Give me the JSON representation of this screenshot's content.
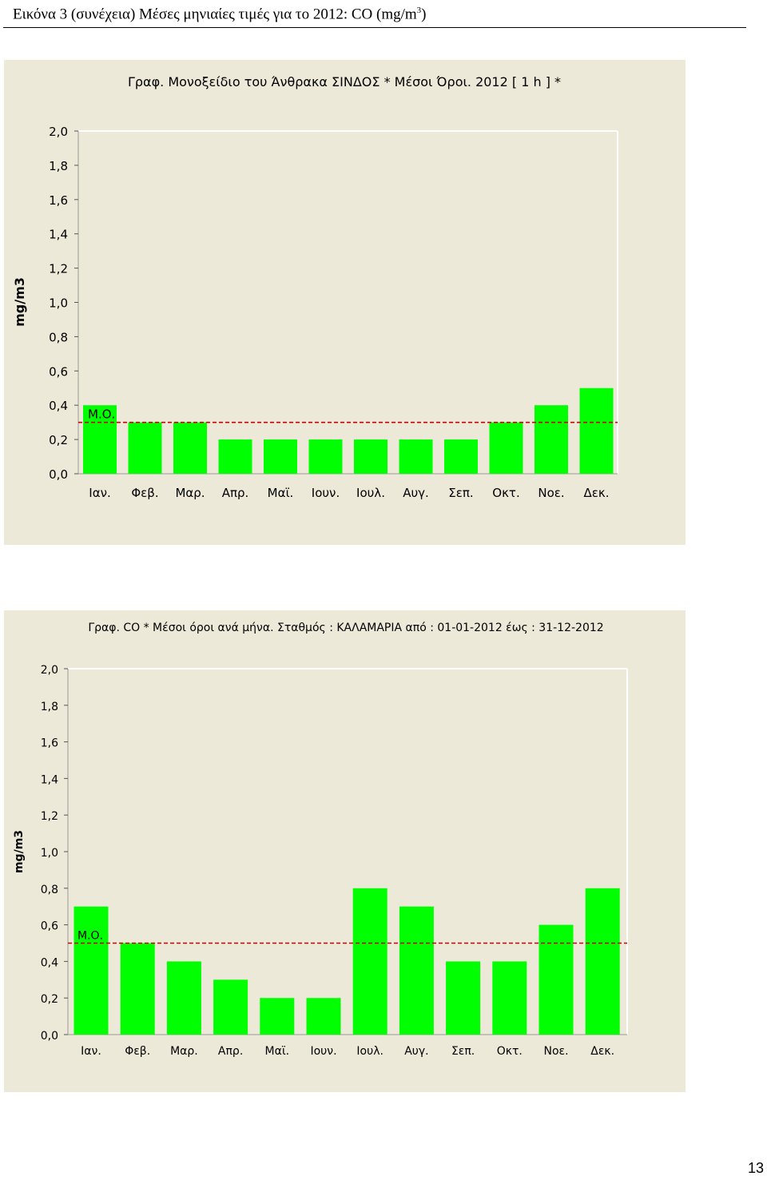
{
  "page": {
    "header_prefix": "Εικόνα 3 (συνέχεια) Μέσες μηνιαίες τιμές για το 2012: CO (mg/m",
    "header_sup": "3",
    "header_suffix": ")",
    "page_number": "13"
  },
  "chart_data": [
    {
      "type": "bar",
      "title": "Γραφ. Μονοξείδιο του Άνθρακα ΣΙΝΔΟΣ * Μέσοι Όροι. 2012 [ 1 h ] *",
      "ylabel": "mg/m3",
      "xlabel": "",
      "categories": [
        "Ιαν.",
        "Φεβ.",
        "Μαρ.",
        "Απρ.",
        "Μαϊ.",
        "Ιουν.",
        "Ιουλ.",
        "Αυγ.",
        "Σεπ.",
        "Οκτ.",
        "Νοε.",
        "Δεκ."
      ],
      "values": [
        0.4,
        0.3,
        0.3,
        0.2,
        0.2,
        0.2,
        0.2,
        0.2,
        0.2,
        0.3,
        0.4,
        0.5
      ],
      "yticks": [
        "0,0",
        "0,2",
        "0,4",
        "0,6",
        "0,8",
        "1,0",
        "1,2",
        "1,4",
        "1,6",
        "1,8",
        "2,0"
      ],
      "ylim": [
        0,
        2.0
      ],
      "mean": 0.3,
      "mean_label": "Μ.Ο.",
      "bar_color": "#00ff00",
      "mean_line_color": "#cc0000",
      "background": "#ece9d8"
    },
    {
      "type": "bar",
      "title": "Γραφ. CO * Μέσοι όροι ανά μήνα. Σταθμός : ΚΑΛΑΜΑΡΙΑ από : 01-01-2012   έως : 31-12-2012",
      "ylabel": "mg/m3",
      "xlabel": "",
      "categories": [
        "Ιαν.",
        "Φεβ.",
        "Μαρ.",
        "Απρ.",
        "Μαϊ.",
        "Ιουν.",
        "Ιουλ.",
        "Αυγ.",
        "Σεπ.",
        "Οκτ.",
        "Νοε.",
        "Δεκ."
      ],
      "values": [
        0.7,
        0.5,
        0.4,
        0.3,
        0.2,
        0.2,
        0.8,
        0.7,
        0.4,
        0.4,
        0.6,
        0.8
      ],
      "yticks": [
        "0,0",
        "0,2",
        "0,4",
        "0,6",
        "0,8",
        "1,0",
        "1,2",
        "1,4",
        "1,6",
        "1,8",
        "2,0"
      ],
      "ylim": [
        0,
        2.0
      ],
      "mean": 0.5,
      "mean_label": "Μ.Ο.",
      "bar_color": "#00ff00",
      "mean_line_color": "#cc0000",
      "background": "#ece9d8"
    }
  ]
}
